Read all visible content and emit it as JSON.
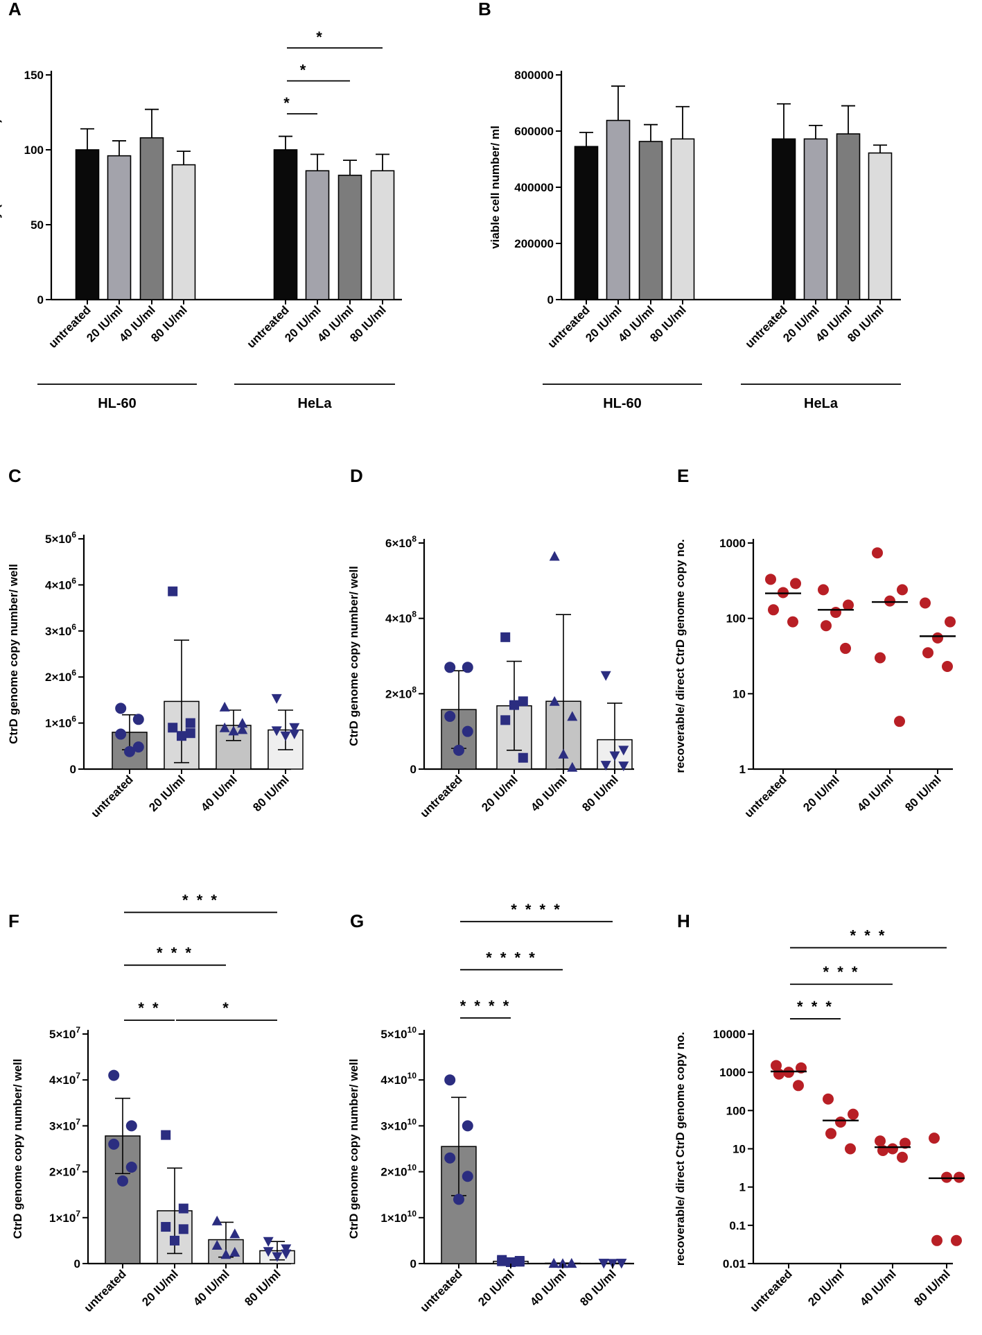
{
  "figure": {
    "panels": [
      "A",
      "B",
      "C",
      "D",
      "E",
      "F",
      "G",
      "H"
    ]
  },
  "chart_data": [
    {
      "id": "A",
      "type": "bar",
      "ylabel": "viability (% of untreated)",
      "ylim": [
        0,
        150
      ],
      "yticks": [
        0,
        50,
        100,
        150
      ],
      "yticklabels": [
        "0",
        "50",
        "100",
        "150"
      ],
      "groups": [
        {
          "name": "HL-60",
          "categories": [
            "untreated",
            "20 IU/ml",
            "40 IU/ml",
            "80 IU/ml"
          ],
          "values": [
            100,
            96,
            108,
            90
          ],
          "errors": [
            14,
            10,
            19,
            9
          ]
        },
        {
          "name": "HeLa",
          "categories": [
            "untreated",
            "20 IU/ml",
            "40 IU/ml",
            "80 IU/ml"
          ],
          "values": [
            100,
            86,
            83,
            86
          ],
          "errors": [
            9,
            11,
            10,
            11
          ]
        }
      ],
      "colors": [
        "#0a0a0a",
        "#a3a3ab",
        "#7c7c7c",
        "#dcdcdc"
      ],
      "significance": [
        {
          "group": 1,
          "from": 0,
          "to": 1,
          "label": "*",
          "y": 124
        },
        {
          "group": 1,
          "from": 0,
          "to": 2,
          "label": "*",
          "y": 146
        },
        {
          "group": 1,
          "from": 0,
          "to": 3,
          "label": "*",
          "y": 168
        }
      ]
    },
    {
      "id": "B",
      "type": "bar",
      "ylabel": "viable cell number/ ml",
      "ylim": [
        0,
        800000
      ],
      "yticks": [
        0,
        200000,
        400000,
        600000,
        800000
      ],
      "yticklabels": [
        "0",
        "200000",
        "400000",
        "600000",
        "800000"
      ],
      "groups": [
        {
          "name": "HL-60",
          "categories": [
            "untreated",
            "20 IU/ml",
            "40 IU/ml",
            "80 IU/ml"
          ],
          "values": [
            545000,
            638000,
            563000,
            572000
          ],
          "errors": [
            50000,
            122000,
            60000,
            115000
          ]
        },
        {
          "name": "HeLa",
          "categories": [
            "untreated",
            "20 IU/ml",
            "40 IU/ml",
            "80 IU/ml"
          ],
          "values": [
            572000,
            572000,
            590000,
            522000
          ],
          "errors": [
            125000,
            48000,
            100000,
            28000
          ]
        }
      ],
      "colors": [
        "#0a0a0a",
        "#a3a3ab",
        "#7c7c7c",
        "#dcdcdc"
      ],
      "significance": []
    },
    {
      "id": "C",
      "type": "bar",
      "ylabel": "CtrD genome copy number/ well",
      "ylim": [
        0,
        5000000
      ],
      "yticks": [
        0,
        1000000,
        2000000,
        3000000,
        4000000,
        5000000
      ],
      "yticklabels": [
        "0",
        "1×10",
        "2×10",
        "3×10",
        "4×10",
        "5×10"
      ],
      "ytickexp": [
        "",
        "6",
        "6",
        "6",
        "6",
        "6"
      ],
      "categories": [
        "untreated",
        "20 IU/ml",
        "40 IU/ml",
        "80 IU/ml"
      ],
      "values": [
        800000,
        1470000,
        950000,
        850000
      ],
      "errors": [
        380000,
        1330000,
        330000,
        430000
      ],
      "colors": [
        "#858585",
        "#d9d9d9",
        "#c4c4c4",
        "#efefef"
      ],
      "points": [
        [
          1320000,
          1080000,
          760000,
          480000,
          380000
        ],
        [
          3860000,
          1000000,
          900000,
          780000,
          720000
        ],
        [
          1350000,
          1000000,
          900000,
          860000,
          830000
        ],
        [
          1530000,
          900000,
          830000,
          760000,
          720000
        ]
      ],
      "markers": [
        "circle",
        "square",
        "triangle-up",
        "triangle-down"
      ],
      "markerColor": "#2b2d80",
      "significance": []
    },
    {
      "id": "D",
      "type": "bar",
      "ylabel": "CtrD genome copy number/ well",
      "ylim": [
        0,
        600000000
      ],
      "yticks": [
        0,
        200000000,
        400000000,
        600000000
      ],
      "yticklabels": [
        "0",
        "2×10",
        "4×10",
        "6×10"
      ],
      "ytickexp": [
        "",
        "8",
        "8",
        "8"
      ],
      "categories": [
        "untreated",
        "20 IU/ml",
        "40 IU/ml",
        "80 IU/ml"
      ],
      "values": [
        158000000,
        168000000,
        180000000,
        78000000
      ],
      "errors": [
        103000000,
        118000000,
        230000000,
        97000000
      ],
      "colors": [
        "#858585",
        "#d9d9d9",
        "#c4c4c4",
        "#efefef"
      ],
      "points": [
        [
          270000000,
          270000000,
          140000000,
          100000000,
          50000000
        ],
        [
          350000000,
          180000000,
          130000000,
          30000000,
          170000000
        ],
        [
          565000000,
          140000000,
          180000000,
          5000000,
          40000000
        ],
        [
          248000000,
          50000000,
          10000000,
          8000000,
          35000000
        ]
      ],
      "markers": [
        "circle",
        "square",
        "triangle-up",
        "triangle-down"
      ],
      "markerColor": "#2b2d80",
      "significance": []
    },
    {
      "id": "E",
      "type": "scatter",
      "yscale": "log",
      "ylabel": "recoverable/ direct CtrD genome copy no.",
      "ylim": [
        1,
        1000
      ],
      "yticks": [
        1,
        10,
        100,
        1000
      ],
      "yticklabels": [
        "1",
        "10",
        "100",
        "1000"
      ],
      "categories": [
        "untreated",
        "20 IU/ml",
        "40 IU/ml",
        "80 IU/ml"
      ],
      "points": [
        [
          330,
          290,
          220,
          130,
          90
        ],
        [
          240,
          150,
          120,
          80,
          40
        ],
        [
          740,
          240,
          170,
          30,
          4.3
        ],
        [
          160,
          90,
          55,
          35,
          23
        ]
      ],
      "medians": [
        215,
        130,
        165,
        58
      ],
      "markerColor": "#b81f25",
      "significance": []
    },
    {
      "id": "F",
      "type": "bar",
      "ylabel": "CtrD genome copy number/ well",
      "ylim": [
        0,
        50000000
      ],
      "yticks": [
        0,
        10000000,
        20000000,
        30000000,
        40000000,
        50000000
      ],
      "yticklabels": [
        "0",
        "1×10",
        "2×10",
        "3×10",
        "4×10",
        "5×10"
      ],
      "ytickexp": [
        "",
        "7",
        "7",
        "7",
        "7",
        "7"
      ],
      "categories": [
        "untreated",
        "20 IU/ml",
        "40 IU/ml",
        "80 IU/ml"
      ],
      "values": [
        27800000,
        11500000,
        5200000,
        2800000
      ],
      "errors": [
        8200000,
        9300000,
        3800000,
        2000000
      ],
      "colors": [
        "#858585",
        "#d9d9d9",
        "#c4c4c4",
        "#efefef"
      ],
      "points": [
        [
          41000000,
          30000000,
          26000000,
          21000000,
          18000000
        ],
        [
          28000000,
          12000000,
          8000000,
          7500000,
          5000000
        ],
        [
          9300000,
          6500000,
          4000000,
          2500000,
          2000000
        ],
        [
          4800000,
          3200000,
          2600000,
          2100000,
          1500000
        ]
      ],
      "markers": [
        "circle",
        "square",
        "triangle-up",
        "triangle-down"
      ],
      "markerColor": "#2b2d80",
      "significance": [
        {
          "from": 0,
          "to": 1,
          "label": "* *",
          "y": 53000000
        },
        {
          "from": 1,
          "to": 3,
          "label": "*",
          "y": 53000000
        },
        {
          "from": 0,
          "to": 2,
          "label": "* * *",
          "y": 65000000
        },
        {
          "from": 0,
          "to": 3,
          "label": "* * *",
          "y": 76500000
        }
      ]
    },
    {
      "id": "G",
      "type": "bar",
      "ylabel": "CtrD genome copy number/ well",
      "ylim": [
        0,
        50000000000
      ],
      "yticks": [
        0,
        10000000000,
        20000000000,
        30000000000,
        40000000000,
        50000000000
      ],
      "yticklabels": [
        "0",
        "1×10",
        "2×10",
        "3×10",
        "4×10",
        "5×10"
      ],
      "ytickexp": [
        "",
        "10",
        "10",
        "10",
        "10",
        "10"
      ],
      "categories": [
        "untreated",
        "20 IU/ml",
        "40 IU/ml",
        "80 IU/ml"
      ],
      "values": [
        25500000000,
        500000000,
        80000000,
        50000000
      ],
      "errors": [
        10700000000,
        300000000,
        50000000,
        30000000
      ],
      "colors": [
        "#858585",
        "#d9d9d9",
        "#c4c4c4",
        "#efefef"
      ],
      "points": [
        [
          40000000000,
          30000000000,
          23000000000,
          19000000000,
          14000000000
        ],
        [
          800000000,
          600000000,
          500000000,
          400000000,
          300000000
        ],
        [
          100000000,
          80000000,
          60000000,
          50000000,
          40000000
        ],
        [
          60000000,
          50000000,
          40000000,
          30000000,
          20000000
        ]
      ],
      "markers": [
        "circle",
        "square",
        "triangle-up",
        "triangle-down"
      ],
      "markerColor": "#2b2d80",
      "significance": [
        {
          "from": 0,
          "to": 1,
          "label": "* * * *",
          "y": 53500000000
        },
        {
          "from": 0,
          "to": 2,
          "label": "* * * *",
          "y": 64000000000
        },
        {
          "from": 0,
          "to": 3,
          "label": "* * * *",
          "y": 74500000000
        }
      ]
    },
    {
      "id": "H",
      "type": "scatter",
      "yscale": "log",
      "ylabel": "recoverable/ direct CtrD genome copy no.",
      "ylim": [
        0.01,
        10000
      ],
      "yticks": [
        0.01,
        0.1,
        1,
        10,
        100,
        1000,
        10000
      ],
      "yticklabels": [
        "0.01",
        "0.1",
        "1",
        "10",
        "100",
        "1000",
        "10000"
      ],
      "categories": [
        "untreated",
        "20 IU/ml",
        "40 IU/ml",
        "80 IU/ml"
      ],
      "points": [
        [
          1500,
          1300,
          1000,
          900,
          450
        ],
        [
          200,
          80,
          50,
          25,
          10
        ],
        [
          16,
          14,
          10,
          9,
          6
        ],
        [
          19,
          1.8,
          1.8,
          0.04,
          0.04
        ]
      ],
      "medians": [
        1050,
        55,
        11,
        1.7
      ],
      "markerColor": "#b81f25",
      "significance": [
        {
          "from": 0,
          "to": 1,
          "label": "* * *",
          "y": 25000
        },
        {
          "from": 0,
          "to": 2,
          "label": "* * *",
          "y": 200000
        },
        {
          "from": 0,
          "to": 3,
          "label": "* * *",
          "y": 1800000
        }
      ]
    }
  ]
}
